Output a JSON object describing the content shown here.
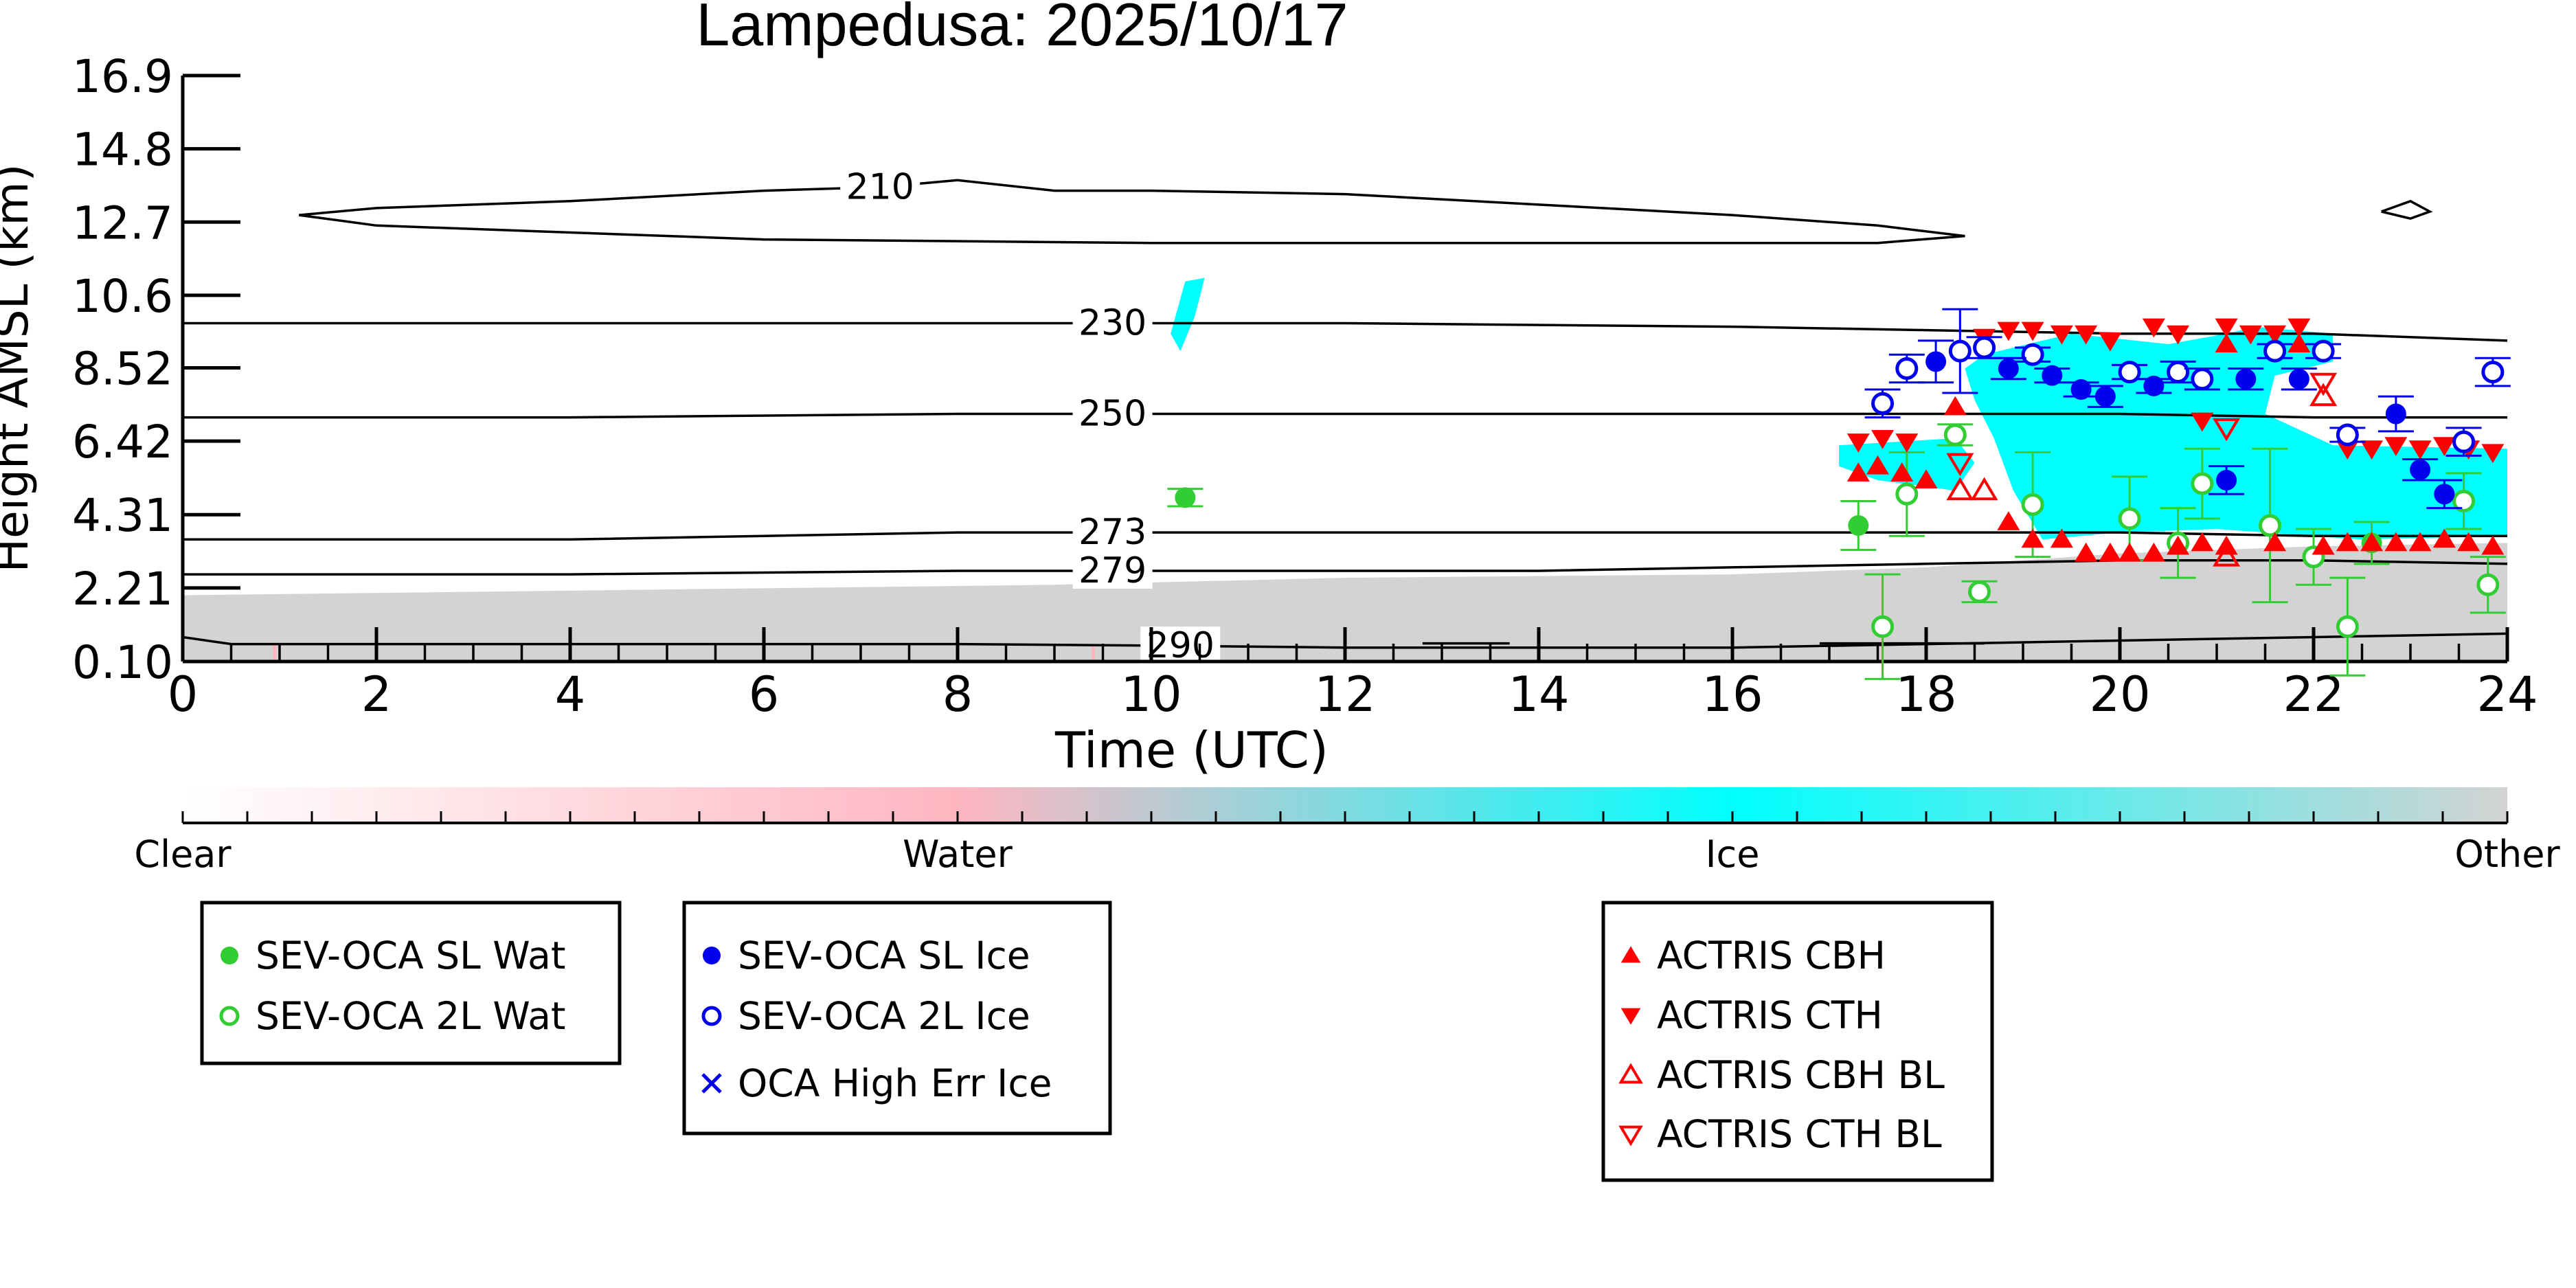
{
  "chart_data": {
    "type": "scatter",
    "title": "Lampedusa: 2025/10/17",
    "xlabel": "Time (UTC)",
    "ylabel": "Height AMSL (km)",
    "xlim": [
      0,
      24
    ],
    "ylim": [
      0.1,
      16.9
    ],
    "x_ticks": [
      0,
      2,
      4,
      6,
      8,
      10,
      12,
      14,
      16,
      18,
      20,
      22,
      24
    ],
    "y_ticks": [
      0.1,
      2.21,
      4.31,
      6.42,
      8.52,
      10.6,
      12.7,
      14.8,
      16.9
    ],
    "y_tick_labels": [
      "0.10",
      "2.21",
      "4.31",
      "6.42",
      "8.52",
      "10.6",
      "12.7",
      "14.8",
      "16.9"
    ],
    "colorbar": {
      "labels": [
        "Clear",
        "Water",
        "Ice",
        "Other"
      ],
      "colors": {
        "clear": "#ffffff",
        "water": "#ffb6c1",
        "ice": "#00ffff",
        "other": "#d3d3d3"
      }
    },
    "contours": [
      {
        "label": "210",
        "label_x": 7.2,
        "points": [
          [
            1.2,
            12.9
          ],
          [
            2,
            13.1
          ],
          [
            4,
            13.3
          ],
          [
            6,
            13.6
          ],
          [
            7.2,
            13.7
          ],
          [
            8,
            13.9
          ],
          [
            9,
            13.6
          ],
          [
            10,
            13.6
          ],
          [
            12,
            13.5
          ],
          [
            14,
            13.2
          ],
          [
            16,
            12.9
          ],
          [
            17.5,
            12.6
          ],
          [
            18.4,
            12.3
          ],
          [
            17.5,
            12.1
          ],
          [
            14,
            12.1
          ],
          [
            10,
            12.1
          ],
          [
            6,
            12.2
          ],
          [
            2,
            12.6
          ],
          [
            1.2,
            12.9
          ]
        ]
      },
      {
        "label": "230",
        "label_x": 9.6,
        "points": [
          [
            0,
            9.8
          ],
          [
            4,
            9.8
          ],
          [
            8,
            9.8
          ],
          [
            9.6,
            9.8
          ],
          [
            12,
            9.8
          ],
          [
            16,
            9.7
          ],
          [
            18,
            9.6
          ],
          [
            20,
            9.5
          ],
          [
            22,
            9.5
          ],
          [
            24,
            9.3
          ]
        ]
      },
      {
        "label": "250",
        "label_x": 9.6,
        "points": [
          [
            0,
            7.1
          ],
          [
            4,
            7.1
          ],
          [
            8,
            7.2
          ],
          [
            9.6,
            7.2
          ],
          [
            12,
            7.2
          ],
          [
            16,
            7.2
          ],
          [
            18,
            7.2
          ],
          [
            20,
            7.2
          ],
          [
            22,
            7.1
          ],
          [
            24,
            7.1
          ]
        ]
      },
      {
        "label": "273",
        "label_x": 9.6,
        "points": [
          [
            0,
            3.6
          ],
          [
            2,
            3.6
          ],
          [
            4,
            3.6
          ],
          [
            6,
            3.7
          ],
          [
            8,
            3.8
          ],
          [
            9.6,
            3.8
          ],
          [
            12,
            3.8
          ],
          [
            16,
            3.8
          ],
          [
            18,
            3.8
          ],
          [
            20,
            3.8
          ],
          [
            22,
            3.7
          ],
          [
            24,
            3.7
          ]
        ]
      },
      {
        "label": "279",
        "label_x": 9.6,
        "points": [
          [
            0,
            2.6
          ],
          [
            4,
            2.6
          ],
          [
            8,
            2.7
          ],
          [
            9.6,
            2.7
          ],
          [
            12,
            2.7
          ],
          [
            14,
            2.7
          ],
          [
            16,
            2.8
          ],
          [
            18,
            2.9
          ],
          [
            20,
            3.0
          ],
          [
            22,
            3.0
          ],
          [
            24,
            2.9
          ]
        ]
      },
      {
        "label": "290",
        "label_x": 10.3,
        "points": [
          [
            0,
            0.8
          ],
          [
            0.5,
            0.6
          ],
          [
            4,
            0.6
          ],
          [
            8,
            0.6
          ],
          [
            10.3,
            0.55
          ],
          [
            12,
            0.5
          ],
          [
            14,
            0.5
          ],
          [
            16,
            0.5
          ],
          [
            18,
            0.6
          ],
          [
            20,
            0.7
          ],
          [
            22,
            0.8
          ],
          [
            24,
            0.9
          ]
        ]
      },
      {
        "label": "",
        "label_x": 0,
        "points": [
          [
            22.7,
            13.0
          ],
          [
            23.0,
            13.3
          ],
          [
            23.2,
            13.0
          ],
          [
            23.0,
            12.8
          ],
          [
            22.7,
            13.0
          ]
        ]
      },
      {
        "label": "",
        "label_x": 0,
        "points": [
          [
            12.8,
            0.62
          ],
          [
            13.7,
            0.62
          ]
        ]
      },
      {
        "label": "",
        "label_x": 0,
        "points": [
          [
            16.9,
            0.62
          ],
          [
            18.6,
            0.62
          ]
        ]
      }
    ],
    "series": [
      {
        "name": "SEV-OCA SL Wat",
        "marker": "circle-filled",
        "color": "#32cd32",
        "points": [
          [
            10.35,
            4.8,
            0.25
          ],
          [
            17.3,
            4.0,
            0.7
          ],
          [
            22.6,
            3.5,
            0.6
          ]
        ]
      },
      {
        "name": "SEV-OCA 2L Wat",
        "marker": "circle-open",
        "color": "#32cd32",
        "points": [
          [
            17.55,
            1.1,
            1.5
          ],
          [
            17.8,
            4.9,
            1.2
          ],
          [
            18.3,
            6.6,
            0.3
          ],
          [
            18.55,
            2.1,
            0.3
          ],
          [
            19.1,
            4.6,
            1.5
          ],
          [
            20.1,
            4.2,
            1.2
          ],
          [
            20.6,
            3.5,
            1.0
          ],
          [
            20.85,
            5.2,
            1.0
          ],
          [
            21.55,
            4.0,
            2.2
          ],
          [
            22.0,
            3.1,
            0.8
          ],
          [
            22.35,
            1.1,
            1.4
          ],
          [
            23.55,
            4.7,
            0.8
          ],
          [
            23.8,
            2.3,
            0.8
          ]
        ]
      },
      {
        "name": "SEV-OCA SL Ice",
        "marker": "circle-filled",
        "color": "#0000ee",
        "points": [
          [
            18.1,
            8.7,
            0.6
          ],
          [
            18.85,
            8.5,
            0.3
          ],
          [
            19.3,
            8.3,
            0.2
          ],
          [
            19.6,
            7.9,
            0.2
          ],
          [
            19.85,
            7.7,
            0.3
          ],
          [
            20.35,
            8.0,
            0.2
          ],
          [
            21.1,
            5.3,
            0.4
          ],
          [
            21.3,
            8.2,
            0.3
          ],
          [
            21.85,
            8.2,
            0.3
          ],
          [
            22.85,
            7.2,
            0.5
          ],
          [
            23.1,
            5.6,
            0.3
          ],
          [
            23.35,
            4.9,
            0.4
          ]
        ]
      },
      {
        "name": "SEV-OCA 2L Ice",
        "marker": "circle-open",
        "color": "#0000ee",
        "points": [
          [
            17.55,
            7.5,
            0.4
          ],
          [
            17.8,
            8.5,
            0.4
          ],
          [
            18.35,
            9.0,
            1.2
          ],
          [
            18.6,
            9.1,
            0.3
          ],
          [
            19.1,
            8.9,
            0.2
          ],
          [
            20.1,
            8.4,
            0.2
          ],
          [
            20.6,
            8.4,
            0.3
          ],
          [
            20.85,
            8.2,
            0.3
          ],
          [
            21.6,
            9.0,
            0.2
          ],
          [
            22.1,
            9.0,
            0.2
          ],
          [
            22.35,
            6.6,
            0.2
          ],
          [
            23.55,
            6.4,
            0.4
          ],
          [
            23.85,
            8.4,
            0.4
          ]
        ]
      },
      {
        "name": "ACTRIS CBH",
        "marker": "triangle-up-filled",
        "color": "#ff0000",
        "points": [
          [
            17.3,
            5.5
          ],
          [
            17.5,
            5.7
          ],
          [
            17.75,
            5.5
          ],
          [
            18.0,
            5.3
          ],
          [
            18.3,
            7.4
          ],
          [
            18.85,
            4.1
          ],
          [
            19.1,
            3.6
          ],
          [
            19.4,
            3.6
          ],
          [
            19.65,
            3.2
          ],
          [
            19.9,
            3.2
          ],
          [
            20.1,
            3.2
          ],
          [
            20.35,
            3.2
          ],
          [
            20.6,
            3.4
          ],
          [
            20.85,
            3.5
          ],
          [
            21.1,
            3.4
          ],
          [
            21.1,
            9.2
          ],
          [
            21.6,
            3.5
          ],
          [
            21.85,
            9.2
          ],
          [
            22.1,
            3.4
          ],
          [
            22.35,
            3.5
          ],
          [
            22.6,
            3.5
          ],
          [
            22.85,
            3.5
          ],
          [
            23.1,
            3.5
          ],
          [
            23.35,
            3.6
          ],
          [
            23.6,
            3.5
          ],
          [
            23.85,
            3.4
          ]
        ]
      },
      {
        "name": "ACTRIS CTH",
        "marker": "triangle-down-filled",
        "color": "#ff0000",
        "points": [
          [
            17.3,
            6.4
          ],
          [
            17.55,
            6.5
          ],
          [
            17.8,
            6.4
          ],
          [
            18.6,
            9.4
          ],
          [
            18.85,
            9.6
          ],
          [
            19.1,
            9.6
          ],
          [
            19.4,
            9.5
          ],
          [
            19.65,
            9.5
          ],
          [
            19.9,
            9.3
          ],
          [
            20.35,
            9.7
          ],
          [
            20.6,
            9.5
          ],
          [
            20.85,
            7.0
          ],
          [
            21.1,
            9.7
          ],
          [
            21.35,
            9.5
          ],
          [
            21.6,
            9.5
          ],
          [
            21.85,
            9.7
          ],
          [
            22.35,
            6.2
          ],
          [
            22.6,
            6.2
          ],
          [
            22.85,
            6.3
          ],
          [
            23.1,
            6.2
          ],
          [
            23.35,
            6.3
          ],
          [
            23.6,
            6.2
          ],
          [
            23.85,
            6.1
          ]
        ]
      },
      {
        "name": "ACTRIS CBH BL",
        "marker": "triangle-up-open",
        "color": "#ff0000",
        "points": [
          [
            18.35,
            5.0
          ],
          [
            18.6,
            5.0
          ],
          [
            21.1,
            3.1
          ],
          [
            22.1,
            7.7
          ]
        ]
      },
      {
        "name": "ACTRIS CTH BL",
        "marker": "triangle-down-open",
        "color": "#ff0000",
        "points": [
          [
            18.35,
            5.8
          ],
          [
            21.1,
            6.8
          ],
          [
            22.1,
            8.1
          ]
        ]
      },
      {
        "name": "OCA High Err Ice",
        "marker": "x",
        "color": "#0000ee",
        "points": []
      }
    ],
    "legend_boxes": [
      [
        "SEV-OCA SL Wat",
        "SEV-OCA 2L Wat"
      ],
      [
        "SEV-OCA SL Ice",
        "SEV-OCA 2L Ice",
        "OCA High Err Ice"
      ],
      [
        "ACTRIS CBH",
        "ACTRIS CTH",
        "ACTRIS CBH BL",
        "ACTRIS CTH BL"
      ]
    ],
    "cloud_mask": {
      "other_layer": [
        [
          0,
          0.1
        ],
        [
          0,
          2.0
        ],
        [
          3,
          2.1
        ],
        [
          6,
          2.2
        ],
        [
          9,
          2.3
        ],
        [
          12,
          2.5
        ],
        [
          16,
          2.6
        ],
        [
          18,
          2.8
        ],
        [
          19,
          3.0
        ],
        [
          20,
          3.2
        ],
        [
          22,
          3.4
        ],
        [
          24,
          3.5
        ],
        [
          24,
          0.1
        ]
      ],
      "ice_regions": [
        [
          [
            18.6,
            8.9
          ],
          [
            19.5,
            9.5
          ],
          [
            20.5,
            9.2
          ],
          [
            21.1,
            9.5
          ],
          [
            21.4,
            9.7
          ],
          [
            22.2,
            9.5
          ],
          [
            22.2,
            8.7
          ],
          [
            21.6,
            8.3
          ],
          [
            21.5,
            7.2
          ],
          [
            22.2,
            6.3
          ],
          [
            24,
            6.2
          ],
          [
            24,
            3.7
          ],
          [
            22.5,
            3.6
          ],
          [
            21.0,
            3.9
          ],
          [
            20.0,
            3.8
          ],
          [
            19.2,
            3.6
          ],
          [
            18.9,
            5.0
          ],
          [
            18.7,
            6.5
          ],
          [
            18.5,
            7.6
          ],
          [
            18.4,
            8.5
          ]
        ],
        [
          [
            17.1,
            6.3
          ],
          [
            18.3,
            6.5
          ],
          [
            18.5,
            5.8
          ],
          [
            18.3,
            5.0
          ],
          [
            17.5,
            5.3
          ],
          [
            17.1,
            5.7
          ]
        ],
        [
          [
            10.35,
            11.0
          ],
          [
            10.55,
            11.1
          ],
          [
            10.45,
            10.0
          ],
          [
            10.3,
            9.0
          ],
          [
            10.2,
            9.5
          ]
        ]
      ],
      "water_ticks": [
        [
          0.95,
          0.6
        ],
        [
          9.4,
          0.6
        ],
        [
          10.5,
          0.9
        ]
      ]
    }
  }
}
